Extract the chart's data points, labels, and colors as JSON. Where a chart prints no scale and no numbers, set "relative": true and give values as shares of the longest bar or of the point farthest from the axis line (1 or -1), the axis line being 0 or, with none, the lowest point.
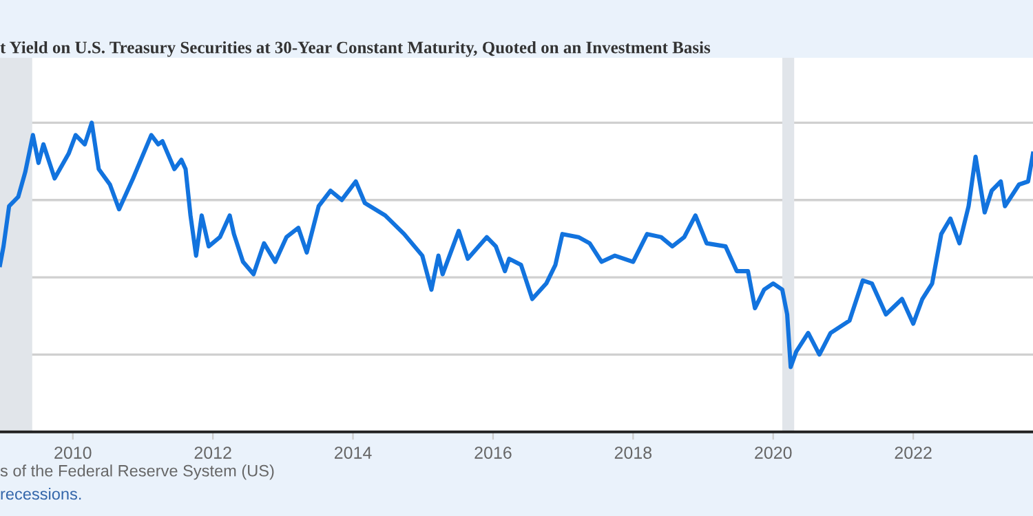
{
  "chart_data": {
    "type": "line",
    "title": "t Yield on U.S. Treasury Securities at 30-Year Constant Maturity, Quoted on an Investment Basis",
    "relative": true,
    "x": [
      2008.96,
      2009.01,
      2009.09,
      2009.22,
      2009.32,
      2009.43,
      2009.51,
      2009.58,
      2009.74,
      2009.94,
      2010.04,
      2010.17,
      2010.27,
      2010.37,
      2010.53,
      2010.66,
      2010.86,
      2011.12,
      2011.22,
      2011.28,
      2011.45,
      2011.55,
      2011.61,
      2011.68,
      2011.76,
      2011.84,
      2011.94,
      2012.1,
      2012.24,
      2012.3,
      2012.43,
      2012.58,
      2012.73,
      2012.89,
      2013.05,
      2013.22,
      2013.34,
      2013.51,
      2013.68,
      2013.84,
      2014.04,
      2014.17,
      2014.46,
      2014.73,
      2014.99,
      2015.12,
      2015.22,
      2015.28,
      2015.51,
      2015.64,
      2015.91,
      2016.04,
      2016.17,
      2016.23,
      2016.4,
      2016.56,
      2016.76,
      2016.89,
      2016.99,
      2017.22,
      2017.38,
      2017.55,
      2017.74,
      2018.0,
      2018.2,
      2018.4,
      2018.56,
      2018.73,
      2018.89,
      2019.05,
      2019.32,
      2019.48,
      2019.64,
      2019.74,
      2019.87,
      2020.0,
      2020.13,
      2020.2,
      2020.25,
      2020.33,
      2020.5,
      2020.66,
      2020.82,
      2021.09,
      2021.28,
      2021.41,
      2021.61,
      2021.84,
      2022.0,
      2022.13,
      2022.27,
      2022.4,
      2022.53,
      2022.66,
      2022.79,
      2022.89,
      2023.02,
      2023.12,
      2023.25,
      2023.31,
      2023.51,
      2023.64,
      2023.71
    ],
    "series": [
      {
        "color": "#1273de",
        "values": [
          0.54,
          0.6,
          0.73,
          0.76,
          0.84,
          0.96,
          0.87,
          0.93,
          0.82,
          0.9,
          0.96,
          0.93,
          1.0,
          0.85,
          0.8,
          0.72,
          0.82,
          0.96,
          0.93,
          0.94,
          0.85,
          0.88,
          0.85,
          0.7,
          0.57,
          0.7,
          0.6,
          0.63,
          0.7,
          0.64,
          0.55,
          0.51,
          0.61,
          0.55,
          0.63,
          0.66,
          0.58,
          0.73,
          0.78,
          0.75,
          0.81,
          0.74,
          0.7,
          0.64,
          0.57,
          0.46,
          0.57,
          0.51,
          0.65,
          0.56,
          0.63,
          0.6,
          0.52,
          0.56,
          0.54,
          0.43,
          0.48,
          0.54,
          0.64,
          0.63,
          0.61,
          0.55,
          0.57,
          0.55,
          0.64,
          0.63,
          0.6,
          0.63,
          0.7,
          0.61,
          0.6,
          0.52,
          0.52,
          0.4,
          0.46,
          0.48,
          0.46,
          0.38,
          0.21,
          0.26,
          0.32,
          0.25,
          0.32,
          0.36,
          0.49,
          0.48,
          0.38,
          0.43,
          0.35,
          0.43,
          0.48,
          0.64,
          0.69,
          0.61,
          0.73,
          0.89,
          0.71,
          0.78,
          0.81,
          0.73,
          0.8,
          0.81,
          0.9
        ]
      }
    ],
    "xlim": [
      2008.96,
      2023.71
    ],
    "xticks": [
      2010,
      2012,
      2014,
      2016,
      2018,
      2020,
      2022
    ],
    "bands": [
      {
        "axis": "x",
        "from": 2008.96,
        "to": 2009.42,
        "color": "#e1e5ea"
      },
      {
        "axis": "x",
        "from": 2020.13,
        "to": 2020.3,
        "color": "#e1e5ea"
      }
    ],
    "grid": "y",
    "annotations": [
      "s of the Federal Reserve System (US)",
      "recessions."
    ]
  }
}
